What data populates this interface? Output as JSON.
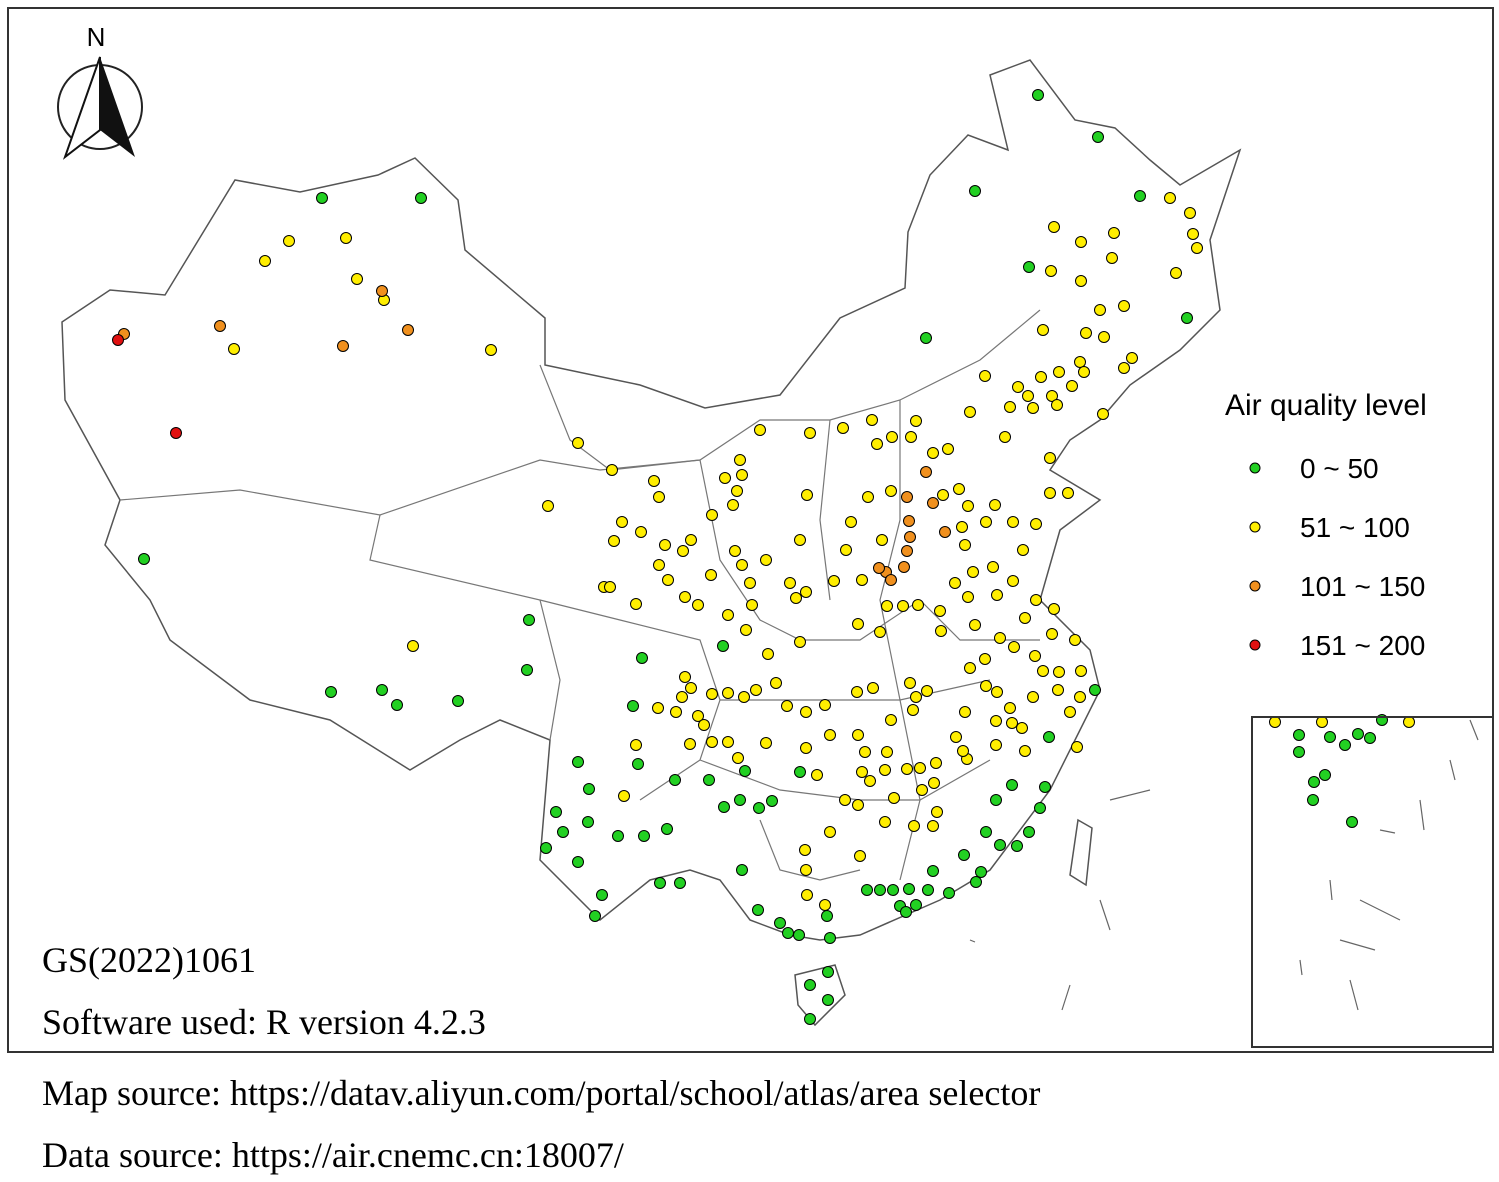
{
  "north_label": "N",
  "legend": {
    "title": "Air quality level",
    "items": [
      {
        "label": "0 ~ 50",
        "color": "#22d022"
      },
      {
        "label": "51 ~ 100",
        "color": "#ffee00"
      },
      {
        "label": "101 ~ 150",
        "color": "#f0901e"
      },
      {
        "label": "151 ~ 200",
        "color": "#e01010"
      }
    ]
  },
  "notes": {
    "approval": "GS(2022)1061",
    "software": "Software used: R version 4.2.3"
  },
  "footer": {
    "map_source": "Map source: https://datav.aliyun.com/portal/school/atlas/area  selector",
    "data_source": "Data source: https://air.cnemc.cn:18007/"
  }
}
